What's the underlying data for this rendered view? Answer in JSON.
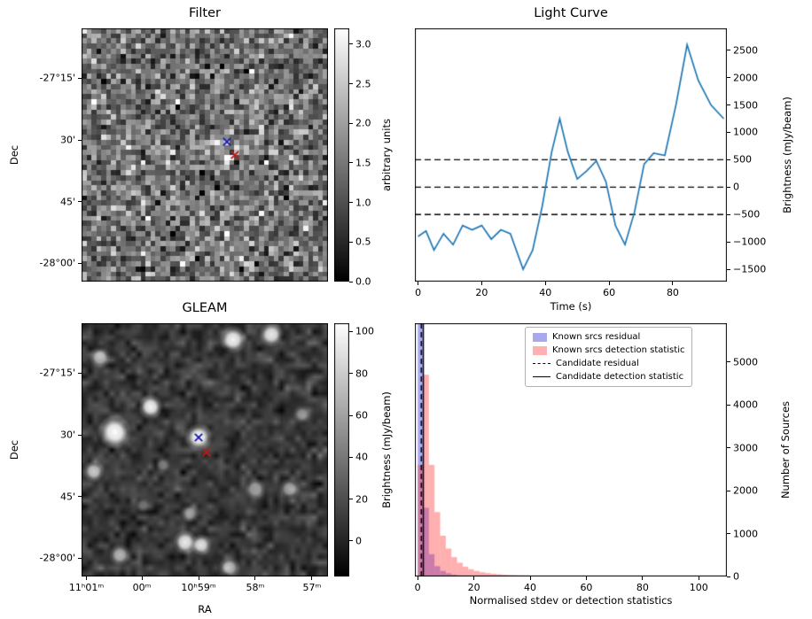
{
  "colors": {
    "line": "#1f77b4",
    "hist_blue_fill": "rgba(55,55,230,0.42)",
    "hist_pink_fill": "rgba(255,45,45,0.38)",
    "legend_blue_patch": "#a8a8ec",
    "legend_pink_patch": "#ffb1b1",
    "marker_blue": "#1616b4",
    "marker_red": "#c21818"
  },
  "panels": {
    "filter": {
      "title": "Filter",
      "ylabel": "Dec",
      "dec_ticks": [
        {
          "f": 0.196,
          "label": "-27°15'"
        },
        {
          "f": 0.441,
          "label": "30'"
        },
        {
          "f": 0.685,
          "label": "45'"
        },
        {
          "f": 0.927,
          "label": "-28°00'"
        }
      ],
      "colorbar": {
        "label": "arbitrary units",
        "vmin": 0,
        "vmax": 3.2,
        "ticks": [
          {
            "v": 0.0,
            "label": "0.0"
          },
          {
            "v": 0.5,
            "label": "0.5"
          },
          {
            "v": 1.0,
            "label": "1.0"
          },
          {
            "v": 1.5,
            "label": "1.5"
          },
          {
            "v": 2.0,
            "label": "2.0"
          },
          {
            "v": 2.5,
            "label": "2.5"
          },
          {
            "v": 3.0,
            "label": "3.0"
          }
        ]
      }
    },
    "lightcurve": {
      "title": "Light Curve",
      "xlabel": "Time (s)",
      "ylabel": "Brightness (mJy/beam)"
    },
    "gleam": {
      "title": "GLEAM",
      "xlabel": "RA",
      "ylabel": "Dec",
      "dec_ticks": [
        {
          "f": 0.196,
          "label": "-27°15'"
        },
        {
          "f": 0.441,
          "label": "30'"
        },
        {
          "f": 0.685,
          "label": "45'"
        },
        {
          "f": 0.927,
          "label": "-28°00'"
        }
      ],
      "ra_ticks": [
        {
          "f": 0.02,
          "label": "11ʰ01ᵐ"
        },
        {
          "f": 0.245,
          "label": "00ᵐ"
        },
        {
          "f": 0.475,
          "label": "10ʰ59ᵐ"
        },
        {
          "f": 0.705,
          "label": "58ᵐ"
        },
        {
          "f": 0.935,
          "label": "57ᵐ"
        }
      ],
      "colorbar": {
        "label": "Brightness (mJy/beam)",
        "vmin": -17,
        "vmax": 104,
        "ticks": [
          {
            "v": 0,
            "label": "0"
          },
          {
            "v": 20,
            "label": "20"
          },
          {
            "v": 40,
            "label": "40"
          },
          {
            "v": 60,
            "label": "60"
          },
          {
            "v": 80,
            "label": "80"
          },
          {
            "v": 100,
            "label": "100"
          }
        ]
      }
    },
    "histogram": {
      "xlabel": "Normalised stdev or detection statistics",
      "ylabel": "Number of Sources",
      "legend": [
        {
          "label": "Known srcs residual",
          "swatch": "patch-blue"
        },
        {
          "label": "Known srcs detection statistic",
          "swatch": "patch-pink"
        },
        {
          "label": "Candidate residual",
          "swatch": "dashed-line"
        },
        {
          "label": "Candidate detection statistic",
          "swatch": "solid-line"
        }
      ]
    }
  },
  "chart_data": [
    {
      "type": "heatmap",
      "name": "Filter",
      "title": "Filter",
      "xlabel": "RA",
      "ylabel": "Dec",
      "units": "arbitrary units",
      "grid": 50,
      "seed": 7,
      "noise_mean": 1.45,
      "noise_std": 0.55,
      "vmin": 0,
      "vmax": 3.2,
      "central_source": {
        "fx": 0.6,
        "fy": 0.45,
        "amp": 0.9
      },
      "hot_pixels": [
        {
          "i": 29,
          "j": 25,
          "value": 3.2
        },
        {
          "i": 30,
          "j": 25,
          "value": 3.05
        },
        {
          "i": 29,
          "j": 26,
          "value": 2.9
        },
        {
          "i": 31,
          "j": 26,
          "value": 0.2
        }
      ],
      "markers": [
        {
          "shape": "x",
          "color": "#1616b4",
          "fx": 0.59,
          "fy": 0.448
        },
        {
          "shape": "x",
          "color": "#c21818",
          "fx": 0.622,
          "fy": 0.5
        }
      ]
    },
    {
      "type": "line",
      "name": "Light Curve",
      "title": "Light Curve",
      "xlabel": "Time (s)",
      "ylabel": "Brightness (mJy/beam)",
      "xlim": [
        -1,
        97
      ],
      "ylim": [
        -1725,
        2900
      ],
      "xticks": [
        0,
        20,
        40,
        60,
        80
      ],
      "yticks": [
        -1500,
        -1000,
        -500,
        0,
        500,
        1000,
        1500,
        2000,
        2500
      ],
      "dashed_hlines": [
        -500,
        0,
        500
      ],
      "x": [
        0,
        2.5,
        5,
        8,
        11,
        14,
        17,
        20,
        23,
        26,
        29,
        33,
        36,
        39,
        42,
        44.5,
        47,
        50,
        53,
        56,
        59,
        62,
        65,
        68,
        71,
        74,
        77.5,
        81,
        84.5,
        88,
        92,
        96
      ],
      "y": [
        -900,
        -800,
        -1150,
        -850,
        -1050,
        -700,
        -780,
        -700,
        -950,
        -780,
        -850,
        -1500,
        -1150,
        -350,
        650,
        1250,
        650,
        150,
        300,
        480,
        100,
        -700,
        -1050,
        -450,
        420,
        620,
        580,
        1500,
        2600,
        1950,
        1500,
        1250
      ]
    },
    {
      "type": "heatmap",
      "name": "GLEAM",
      "title": "GLEAM",
      "xlabel": "RA",
      "ylabel": "Dec",
      "units": "Brightness (mJy/beam)",
      "grid": 45,
      "seed": 11,
      "noise_mean": 10,
      "noise_std": 9,
      "noise_clip_high": 45,
      "vmin": -17,
      "vmax": 104,
      "sources": [
        {
          "fx": 0.615,
          "fy": 0.065,
          "r": 9,
          "a": 0.95
        },
        {
          "fx": 0.77,
          "fy": 0.045,
          "r": 8,
          "a": 0.9
        },
        {
          "fx": 0.075,
          "fy": 0.135,
          "r": 7,
          "a": 0.7
        },
        {
          "fx": 0.28,
          "fy": 0.33,
          "r": 8,
          "a": 0.95
        },
        {
          "fx": 0.135,
          "fy": 0.43,
          "r": 11,
          "a": 1.0
        },
        {
          "fx": 0.475,
          "fy": 0.45,
          "r": 9,
          "a": 1.0
        },
        {
          "fx": 0.05,
          "fy": 0.585,
          "r": 7,
          "a": 0.75
        },
        {
          "fx": 0.895,
          "fy": 0.36,
          "r": 6,
          "a": 0.45
        },
        {
          "fx": 0.705,
          "fy": 0.655,
          "r": 7,
          "a": 0.55
        },
        {
          "fx": 0.845,
          "fy": 0.655,
          "r": 7,
          "a": 0.6
        },
        {
          "fx": 0.44,
          "fy": 0.75,
          "r": 6,
          "a": 0.5
        },
        {
          "fx": 0.42,
          "fy": 0.865,
          "r": 8,
          "a": 0.9
        },
        {
          "fx": 0.485,
          "fy": 0.875,
          "r": 7,
          "a": 0.85
        },
        {
          "fx": 0.155,
          "fy": 0.915,
          "r": 7,
          "a": 0.65
        },
        {
          "fx": 0.6,
          "fy": 0.965,
          "r": 7,
          "a": 0.7
        },
        {
          "fx": 0.33,
          "fy": 0.56,
          "r": 5,
          "a": 0.35
        },
        {
          "fx": 0.25,
          "fy": 0.72,
          "r": 5,
          "a": 0.3
        }
      ],
      "markers": [
        {
          "shape": "x",
          "color": "#1616b4",
          "fx": 0.475,
          "fy": 0.451
        },
        {
          "shape": "x",
          "color": "#c21818",
          "fx": 0.507,
          "fy": 0.51
        }
      ]
    },
    {
      "type": "histogram",
      "name": "Detection statistics",
      "xlabel": "Normalised stdev or detection statistics",
      "ylabel": "Number of Sources",
      "xlim": [
        -1,
        110
      ],
      "ylim": [
        0,
        5900
      ],
      "xticks": [
        0,
        20,
        40,
        60,
        80,
        100
      ],
      "yticks": [
        0,
        1000,
        2000,
        3000,
        4000,
        5000
      ],
      "bin_start": 0,
      "bin_width": 2,
      "series": [
        {
          "name": "Known srcs residual",
          "values": [
            5900,
            1600,
            520,
            240,
            130,
            75,
            45,
            28,
            18,
            12,
            8,
            6,
            4,
            3,
            2,
            2,
            1,
            1,
            1,
            1,
            0,
            0,
            0,
            0,
            0,
            0,
            0,
            0,
            0,
            0,
            0,
            0,
            0,
            0,
            0,
            0,
            0,
            0,
            0,
            0,
            0,
            0,
            0,
            0,
            0,
            0,
            0,
            0,
            0,
            0,
            0,
            0,
            0,
            0,
            0
          ]
        },
        {
          "name": "Known srcs detection statistic",
          "values": [
            2600,
            4700,
            2600,
            1500,
            950,
            650,
            450,
            320,
            230,
            170,
            130,
            100,
            80,
            65,
            52,
            42,
            35,
            30,
            26,
            22,
            19,
            17,
            15,
            13,
            12,
            11,
            10,
            9,
            8,
            7,
            7,
            6,
            6,
            5,
            5,
            4,
            4,
            4,
            3,
            3,
            3,
            3,
            2,
            2,
            2,
            2,
            2,
            2,
            1,
            1,
            1,
            1,
            1,
            1,
            1
          ]
        }
      ],
      "candidate_residual_x": 1.3,
      "candidate_detection_x": 2.0
    }
  ]
}
